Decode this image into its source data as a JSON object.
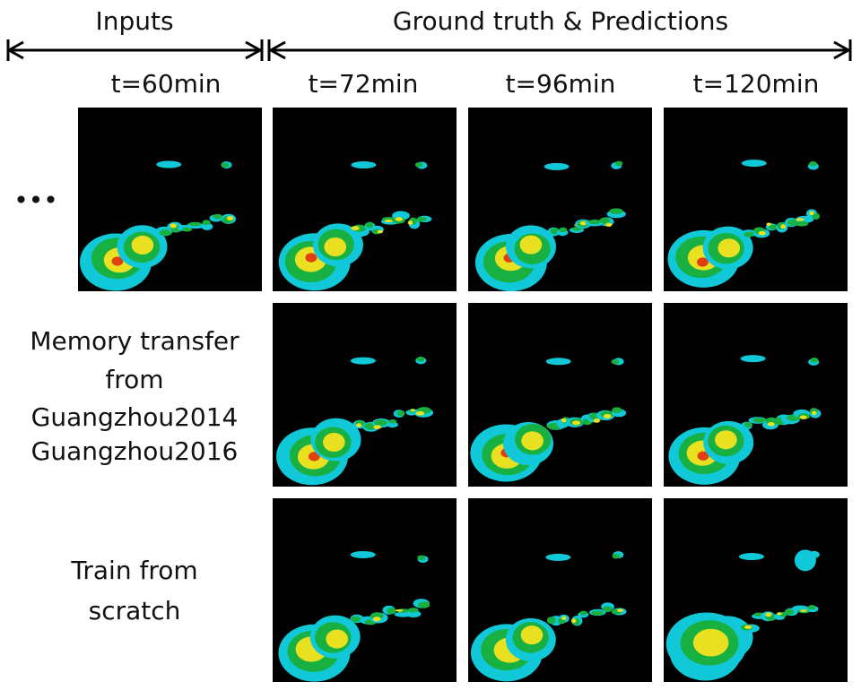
{
  "header": {
    "inputs": "Inputs",
    "ground_truth_predictions": "Ground truth & Predictions"
  },
  "time_labels": [
    "t=60min",
    "t=72min",
    "t=96min",
    "t=120min"
  ],
  "ellipsis": "•••",
  "row_labels": [
    [
      "Memory transfer",
      "from",
      "Guangzhou2014",
      "Guangzhou2016"
    ],
    [
      "Train from",
      "scratch"
    ]
  ]
}
